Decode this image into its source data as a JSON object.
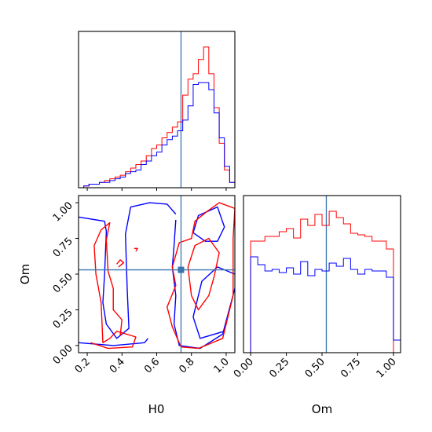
{
  "chart_data": {
    "type": "corner",
    "parameters": [
      "H0",
      "Om"
    ],
    "truths": {
      "H0": 0.74,
      "Om": 0.53
    },
    "colors": {
      "series_a": "#ff0000",
      "series_b": "#0000ff",
      "truth": "#3b75af"
    },
    "panels": [
      {
        "id": "h0-marginal",
        "type": "histogram",
        "xlim": [
          0.15,
          1.05
        ],
        "x_ticks": [
          0.2,
          0.4,
          0.6,
          0.8,
          1.0
        ],
        "bins": [
          0.15,
          0.18,
          0.21,
          0.24,
          0.27,
          0.3,
          0.33,
          0.36,
          0.39,
          0.42,
          0.45,
          0.48,
          0.51,
          0.54,
          0.57,
          0.6,
          0.63,
          0.66,
          0.69,
          0.72,
          0.75,
          0.78,
          0.81,
          0.84,
          0.87,
          0.9,
          0.93,
          0.96,
          0.99,
          1.02,
          1.05
        ],
        "series": [
          {
            "color_key": "series_a",
            "values": [
              0,
              1,
              2,
              2,
              3,
              4,
              5,
              6,
              7,
              9,
              11,
              13,
              15,
              18,
              22,
              24,
              28,
              31,
              34,
              37,
              52,
              61,
              64,
              72,
              79,
              64,
              45,
              25,
              10,
              3
            ]
          },
          {
            "color_key": "series_b",
            "values": [
              0,
              1,
              2,
              2,
              3,
              3,
              4,
              5,
              6,
              8,
              9,
              10,
              13,
              15,
              18,
              20,
              24,
              27,
              29,
              32,
              38,
              46,
              58,
              59,
              59,
              55,
              42,
              28,
              12,
              3
            ]
          }
        ],
        "truth": 0.74
      },
      {
        "id": "om-marginal",
        "type": "histogram",
        "xlim": [
          -0.05,
          1.05
        ],
        "x_ticks": [
          "0.00",
          "0.25",
          "0.50",
          "0.75",
          "1.00"
        ],
        "x_tick_values": [
          0.0,
          0.25,
          0.5,
          0.75,
          1.0
        ],
        "xlabel": "Om",
        "bins": [
          -0.05,
          0.0,
          0.05,
          0.1,
          0.15,
          0.2,
          0.25,
          0.3,
          0.35,
          0.4,
          0.45,
          0.5,
          0.55,
          0.6,
          0.65,
          0.7,
          0.75,
          0.8,
          0.85,
          0.9,
          0.95,
          1.0,
          1.05
        ],
        "series": [
          {
            "color_key": "series_a",
            "values": [
              0,
              71,
              71,
              74,
              74,
              77,
              79,
              73,
              85,
              81,
              88,
              81,
              90,
              86,
              82,
              76,
              75,
              74,
              71,
              71,
              66,
              0
            ]
          },
          {
            "color_key": "series_b",
            "values": [
              0,
              61,
              56,
              52,
              53,
              51,
              54,
              50,
              58,
              49,
              53,
              52,
              57,
              55,
              60,
              53,
              50,
              53,
              52,
              52,
              48,
              8
            ]
          }
        ],
        "truth": 0.53
      },
      {
        "id": "h0-om-joint",
        "type": "contour",
        "xlim": [
          0.15,
          1.05
        ],
        "ylim": [
          -0.05,
          1.05
        ],
        "x_ticks": [
          0.2,
          0.4,
          0.6,
          0.8,
          1.0
        ],
        "x_tick_labels": [
          "0.2",
          "0.4",
          "0.6",
          "0.8",
          "1.0"
        ],
        "y_ticks": [
          0.0,
          0.25,
          0.5,
          0.75,
          1.0
        ],
        "y_tick_labels": [
          "0.00",
          "0.25",
          "0.50",
          "0.75",
          "1.00"
        ],
        "xlabel": "H0",
        "ylabel": "Om",
        "truth": [
          0.74,
          0.53
        ],
        "contours": [
          {
            "color_key": "series_b",
            "points": [
              [
                0.15,
                0.9
              ],
              [
                0.3,
                0.87
              ],
              [
                0.31,
                0.8
              ],
              [
                0.3,
                0.5
              ],
              [
                0.29,
                0.3
              ],
              [
                0.31,
                0.15
              ],
              [
                0.37,
                0.05
              ],
              [
                0.44,
                0.12
              ],
              [
                0.43,
                0.4
              ],
              [
                0.42,
                0.78
              ],
              [
                0.45,
                0.97
              ],
              [
                0.56,
                1.0
              ],
              [
                0.66,
                0.99
              ],
              [
                0.71,
                0.92
              ]
            ]
          },
          {
            "color_key": "series_b",
            "points": [
              [
                0.15,
                0.02
              ],
              [
                0.35,
                0.0
              ],
              [
                0.53,
                0.02
              ],
              [
                0.55,
                0.05
              ]
            ]
          },
          {
            "color_key": "series_b",
            "points": [
              [
                0.71,
                0.88
              ],
              [
                0.7,
                0.7
              ],
              [
                0.69,
                0.55
              ],
              [
                0.71,
                0.35
              ],
              [
                0.7,
                0.15
              ],
              [
                0.73,
                0.0
              ],
              [
                0.85,
                -0.02
              ],
              [
                0.98,
                0.08
              ],
              [
                1.05,
                0.4
              ]
            ]
          },
          {
            "color_key": "series_b",
            "points": [
              [
                1.05,
                0.5
              ],
              [
                0.95,
                0.55
              ],
              [
                0.86,
                0.45
              ],
              [
                0.81,
                0.2
              ],
              [
                0.85,
                0.05
              ],
              [
                0.99,
                0.1
              ]
            ]
          },
          {
            "color_key": "series_b",
            "points": [
              [
                0.81,
                0.79
              ],
              [
                0.84,
                0.91
              ],
              [
                0.95,
                0.97
              ],
              [
                0.99,
                0.83
              ],
              [
                0.95,
                0.73
              ],
              [
                0.88,
                0.73
              ],
              [
                0.81,
                0.79
              ]
            ]
          },
          {
            "color_key": "series_b",
            "points": [
              [
                0.15,
                0.98
              ],
              [
                0.13,
                0.96
              ],
              [
                0.15,
                0.94
              ]
            ]
          },
          {
            "color_key": "series_a",
            "points": [
              [
                0.22,
                0.02
              ],
              [
                0.32,
                -0.02
              ],
              [
                0.46,
                -0.01
              ],
              [
                0.48,
                0.06
              ],
              [
                0.37,
                0.1
              ],
              [
                0.33,
                0.05
              ],
              [
                0.29,
                0.02
              ],
              [
                0.28,
                0.3
              ],
              [
                0.25,
                0.5
              ],
              [
                0.24,
                0.7
              ],
              [
                0.28,
                0.81
              ],
              [
                0.33,
                0.86
              ],
              [
                0.31,
                0.74
              ],
              [
                0.32,
                0.52
              ],
              [
                0.35,
                0.4
              ],
              [
                0.35,
                0.25
              ],
              [
                0.4,
                0.18
              ],
              [
                0.39,
                0.07
              ]
            ]
          },
          {
            "color_key": "series_a",
            "points": [
              [
                0.74,
                -0.01
              ],
              [
                0.84,
                -0.02
              ],
              [
                0.98,
                0.05
              ],
              [
                1.04,
                0.35
              ],
              [
                1.04,
                0.75
              ],
              [
                1.05,
                0.96
              ],
              [
                0.96,
                1.0
              ],
              [
                0.88,
                0.93
              ],
              [
                0.82,
                0.87
              ],
              [
                0.8,
                0.75
              ],
              [
                0.73,
                0.72
              ],
              [
                0.69,
                0.55
              ],
              [
                0.71,
                0.42
              ],
              [
                0.66,
                0.27
              ],
              [
                0.69,
                0.13
              ],
              [
                0.74,
                -0.01
              ]
            ]
          },
          {
            "color_key": "series_a",
            "points": [
              [
                0.78,
                0.55
              ],
              [
                0.82,
                0.7
              ],
              [
                0.9,
                0.75
              ],
              [
                0.96,
                0.65
              ],
              [
                0.93,
                0.48
              ],
              [
                0.9,
                0.35
              ],
              [
                0.84,
                0.25
              ],
              [
                0.8,
                0.35
              ],
              [
                0.78,
                0.55
              ]
            ]
          },
          {
            "color_key": "series_a",
            "points": [
              [
                0.38,
                0.55
              ],
              [
                0.41,
                0.58
              ],
              [
                0.39,
                0.6
              ],
              [
                0.37,
                0.57
              ]
            ]
          },
          {
            "color_key": "series_a",
            "points": [
              [
                0.48,
                0.66
              ],
              [
                0.49,
                0.68
              ],
              [
                0.47,
                0.68
              ]
            ]
          }
        ]
      }
    ]
  }
}
